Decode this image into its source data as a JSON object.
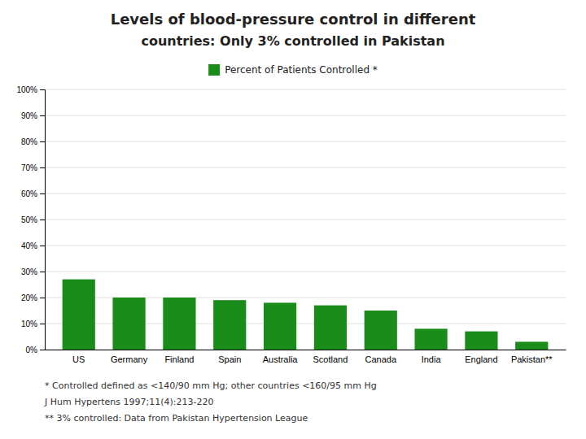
{
  "chart_data": {
    "type": "bar",
    "title": "Levels of blood-pressure control in different",
    "subtitle": "countries: Only 3% controlled in Pakistan",
    "categories": [
      "US",
      "Germany",
      "Finland",
      "Spain",
      "Australia",
      "Scotland",
      "Canada",
      "India",
      "England",
      "Pakistan**"
    ],
    "series": [
      {
        "name": "Percent of Patients Controlled  *",
        "color": "#1a8c1a",
        "values": [
          27,
          20,
          20,
          19,
          18,
          17,
          15,
          8,
          7,
          3
        ]
      }
    ],
    "ylim": [
      0,
      100
    ],
    "yticks": [
      {
        "value": 0,
        "label": "0%"
      },
      {
        "value": 10,
        "label": "10%"
      },
      {
        "value": 20,
        "label": "20%"
      },
      {
        "value": 30,
        "label": "30%"
      },
      {
        "value": 40,
        "label": "40%"
      },
      {
        "value": 50,
        "label": "50%"
      },
      {
        "value": 60,
        "label": "60%"
      },
      {
        "value": 70,
        "label": "70%"
      },
      {
        "value": 80,
        "label": "80%"
      },
      {
        "value": 90,
        "label": "90%"
      },
      {
        "value": 100,
        "label": "100%"
      }
    ],
    "grid": true,
    "legend": "top",
    "annotations": [
      "* Controlled defined as <140/90 mm Hg; other countries <160/95 mm Hg",
      "J Hum Hypertens 1997;11(4):213-220",
      "** 3% controlled: Data from Pakistan Hypertension League"
    ]
  }
}
